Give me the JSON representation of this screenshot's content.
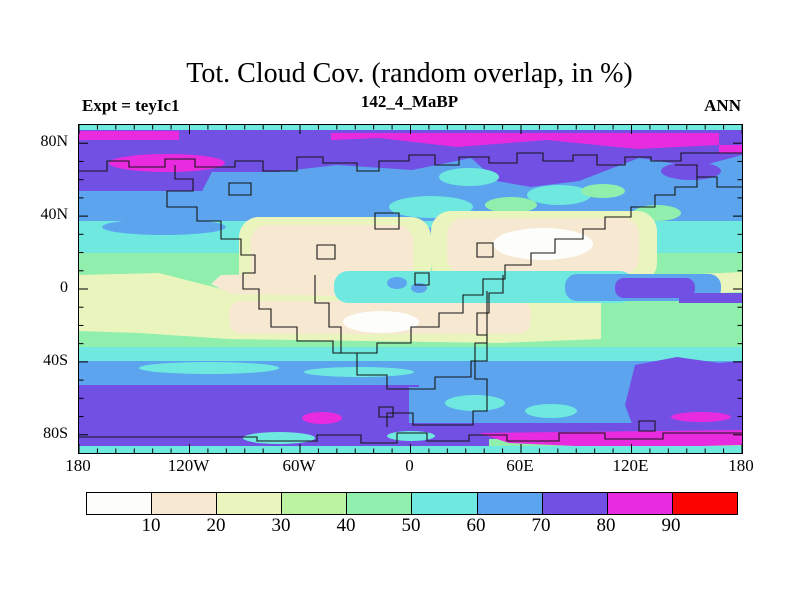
{
  "header": {
    "title": "Tot. Cloud Cov. (random overlap, in %)",
    "subtitle": "142_4_MaBP",
    "experiment_label": "Expt = teyIc1",
    "season_label": "ANN"
  },
  "map": {
    "lat_ticks": [
      {
        "value": 80,
        "label": "80N"
      },
      {
        "value": 40,
        "label": "40N"
      },
      {
        "value": 0,
        "label": "0"
      },
      {
        "value": -40,
        "label": "40S"
      },
      {
        "value": -80,
        "label": "80S"
      }
    ],
    "lon_ticks": [
      {
        "value": -180,
        "label": "180"
      },
      {
        "value": -120,
        "label": "120W"
      },
      {
        "value": -60,
        "label": "60W"
      },
      {
        "value": 0,
        "label": "0"
      },
      {
        "value": 60,
        "label": "60E"
      },
      {
        "value": 120,
        "label": "120E"
      },
      {
        "value": 180,
        "label": "180"
      }
    ],
    "minor_tick_step_deg": 10
  },
  "colorbar": {
    "levels": [
      10,
      20,
      30,
      40,
      50,
      60,
      70,
      80,
      90
    ],
    "colors": [
      "#FDFDFB",
      "#F6E8D1",
      "#EAF5BD",
      "#BCF3A3",
      "#90EFAD",
      "#6FE9E0",
      "#5CA4EE",
      "#7150E3",
      "#E92BDF",
      "#FA0301"
    ]
  },
  "chart_data": {
    "type": "heatmap",
    "subtype": "filled_contour_global_map",
    "title": "Tot. Cloud Cov. (random overlap, in %)",
    "subtitle": "142_4_MaBP",
    "experiment": "Expt = teyIc1",
    "season": "ANN",
    "units": "%",
    "lon_range": [
      -180,
      180
    ],
    "lat_range": [
      -90,
      90
    ],
    "contour_levels": [
      10,
      20,
      30,
      40,
      50,
      60,
      70,
      80,
      90
    ],
    "palette": [
      "#FDFDFB",
      "#F6E8D1",
      "#EAF5BD",
      "#BCF3A3",
      "#90EFAD",
      "#6FE9E0",
      "#5CA4EE",
      "#7150E3",
      "#E92BDF",
      "#FA0301"
    ],
    "legend_position": "bottom",
    "grid": false,
    "approx_zonal_mean_cloud_cover_pct": [
      {
        "lat": 88,
        "value": 55
      },
      {
        "lat": 82,
        "value": 78
      },
      {
        "lat": 72,
        "value": 72
      },
      {
        "lat": 62,
        "value": 65
      },
      {
        "lat": 52,
        "value": 55
      },
      {
        "lat": 42,
        "value": 48
      },
      {
        "lat": 32,
        "value": 30
      },
      {
        "lat": 22,
        "value": 22
      },
      {
        "lat": 12,
        "value": 38
      },
      {
        "lat": 2,
        "value": 55
      },
      {
        "lat": -8,
        "value": 40
      },
      {
        "lat": -18,
        "value": 18
      },
      {
        "lat": -28,
        "value": 35
      },
      {
        "lat": -38,
        "value": 55
      },
      {
        "lat": -48,
        "value": 65
      },
      {
        "lat": -58,
        "value": 72
      },
      {
        "lat": -68,
        "value": 75
      },
      {
        "lat": -78,
        "value": 70
      },
      {
        "lat": -88,
        "value": 55
      }
    ],
    "notable_features": [
      "magenta band (80-90%) along ~80-85N, strongest 0E-120E",
      "violet band (70-80%) across high northern latitudes with magenta patch near 160-130W at ~72N",
      "large low-cloud (<20%, cream/white) continental regions at 15-40N over the central and eastern landmasses",
      "white patch (<10%) over subtropical land near 25S, 60-40W",
      "cyan equatorial band (50-60%) with small 60-80% cores near 80-110E",
      "blue band (60-70%) across 35-55S",
      "violet band (70-80%) across 55-75S, broad 70-80% pool in far southeast with magenta streaks",
      "magenta band (80-90%) near 75-85S from ~30E to 180",
      "stepped (grid-cell) paleogeographic coastlines drawn in black"
    ]
  }
}
